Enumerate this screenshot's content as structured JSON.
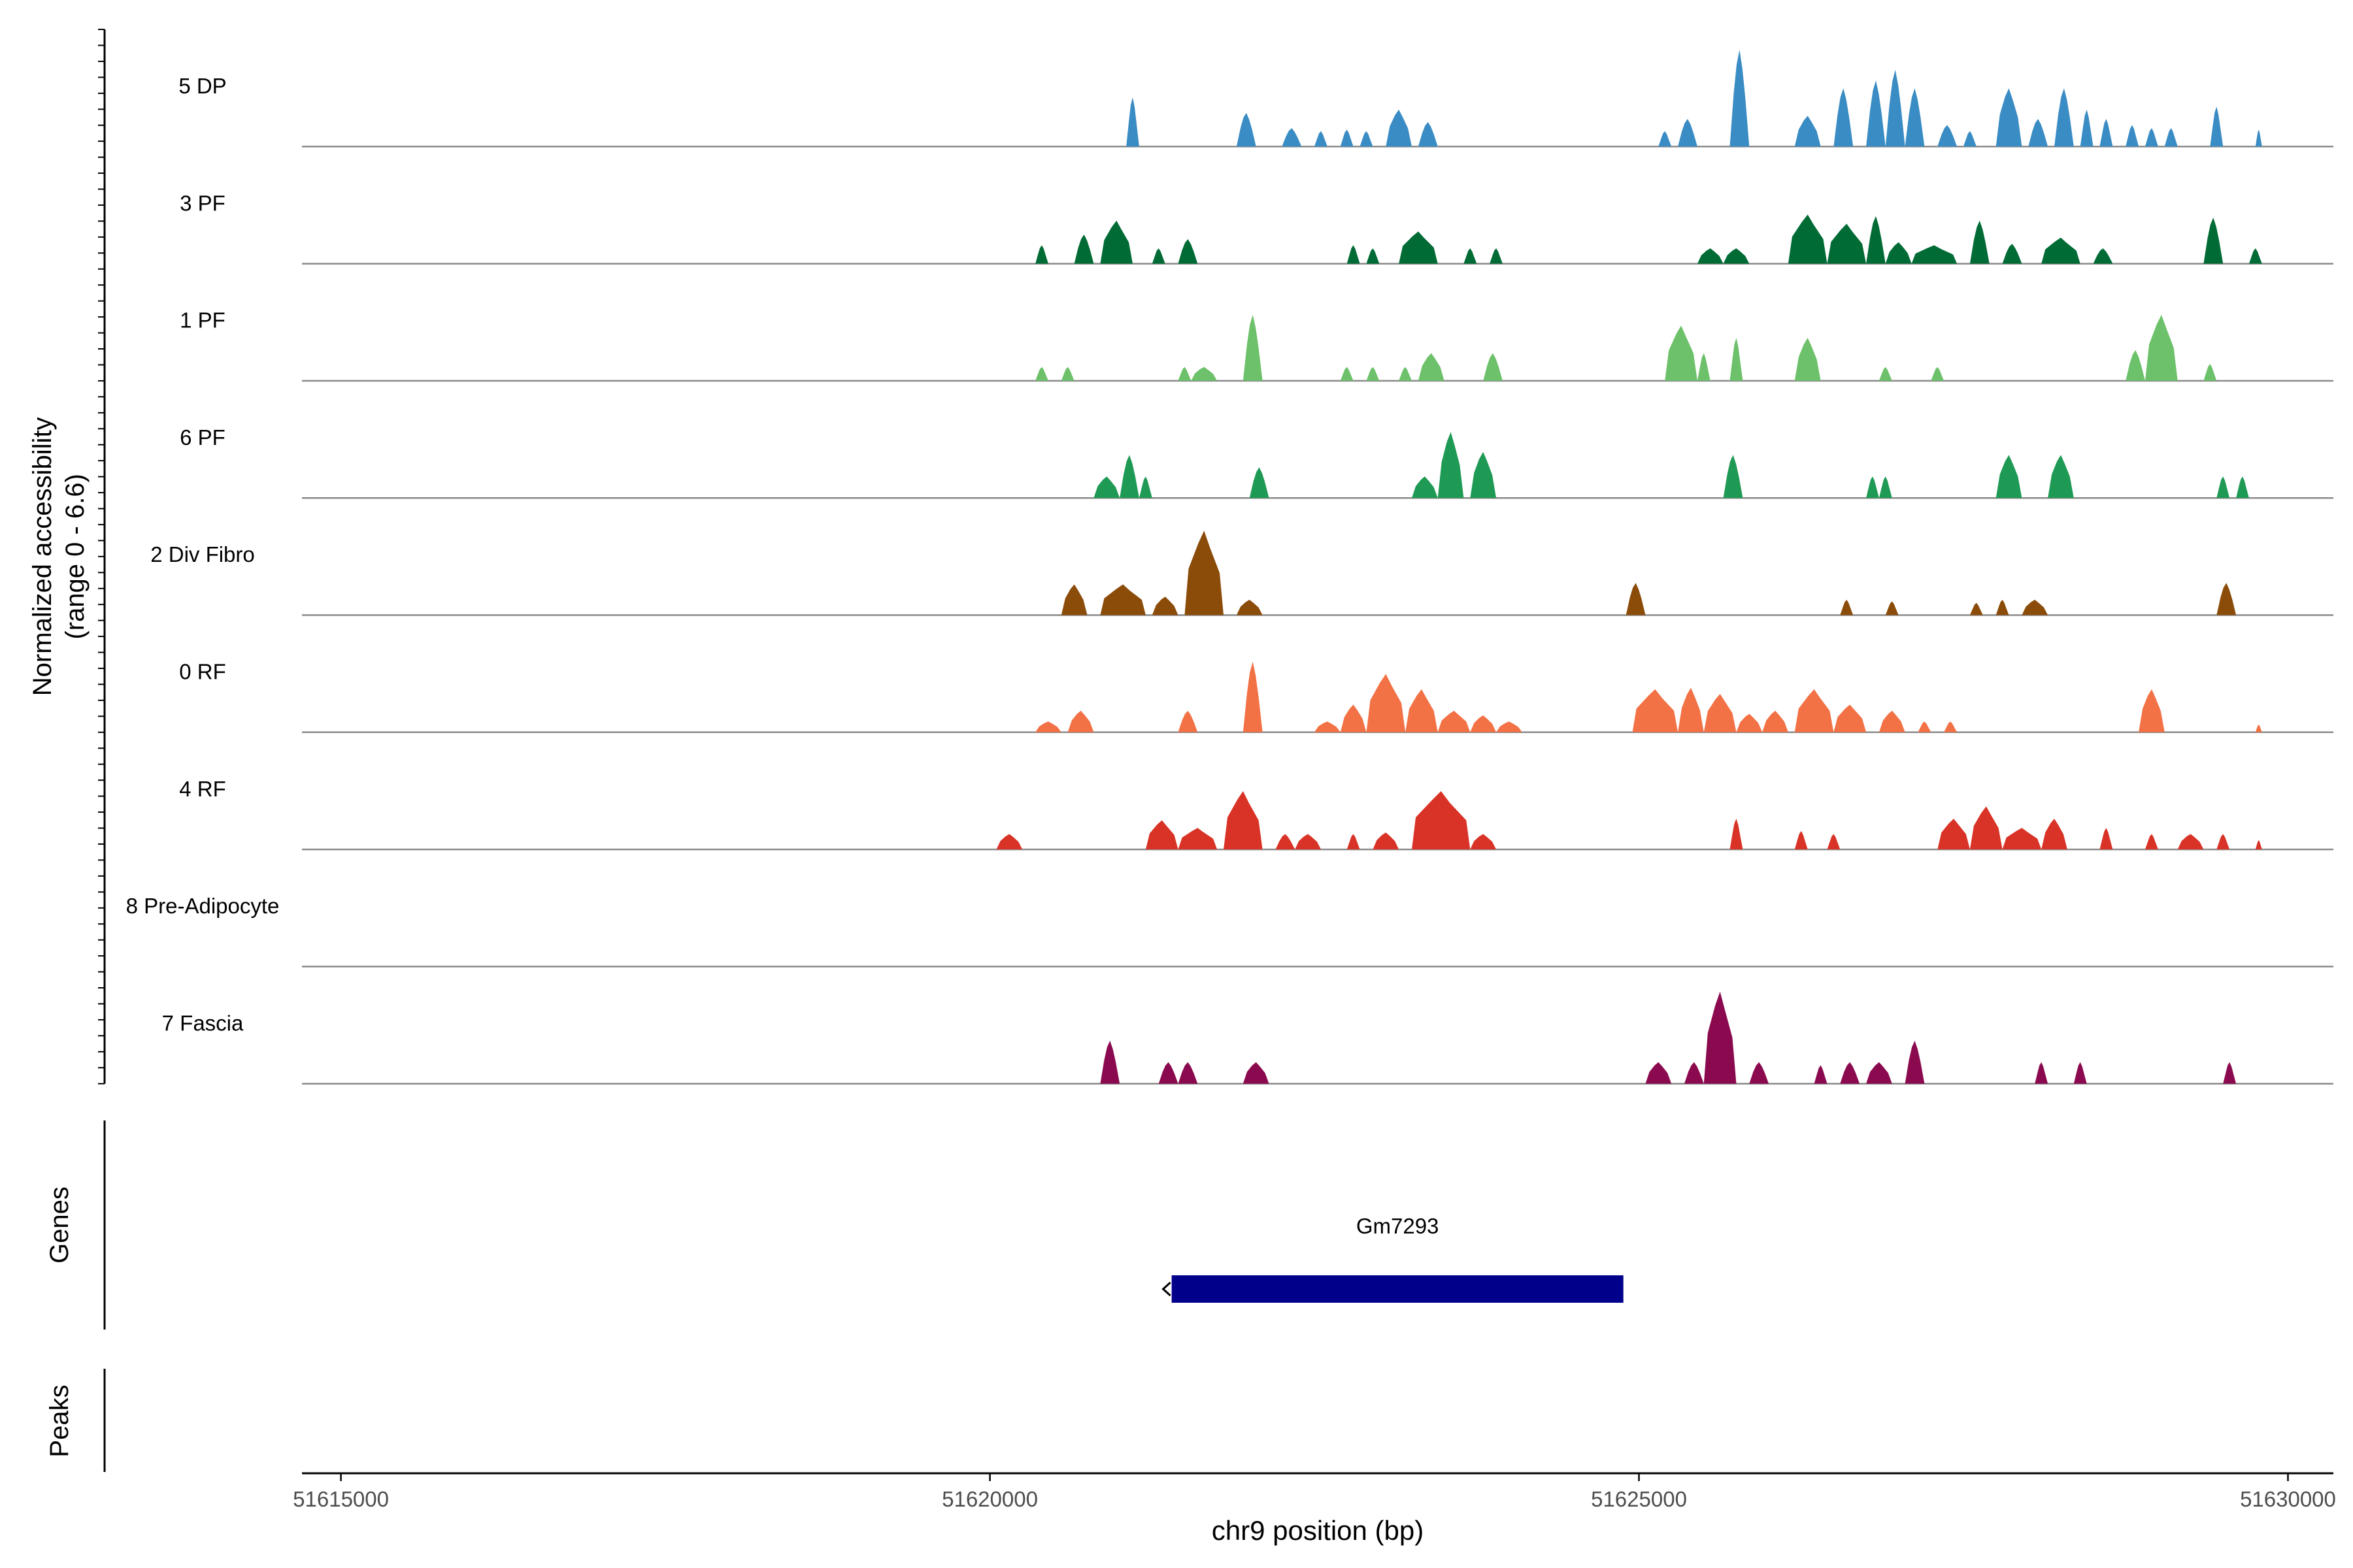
{
  "chart_data": {
    "type": "area",
    "title": "",
    "xlabel": "chr9 position (bp)",
    "x_range": [
      51614700,
      51630350
    ],
    "x_ticks": [
      51615000,
      51620000,
      51625000,
      51630000
    ],
    "x_tick_labels": [
      "51615000",
      "51620000",
      "51625000",
      "51630000"
    ],
    "y_axis_label_line1": "Normalized accessibility",
    "y_axis_label_line2": "(range 0 - 6.6)",
    "ylim": [
      0,
      6.6
    ],
    "tracks": [
      {
        "name": "5 DP",
        "color": "#3A8CC4",
        "peaks": [
          [
            51621050,
            51621150,
            3.2
          ],
          [
            51621900,
            51622050,
            2.2
          ],
          [
            51622250,
            51622400,
            1.2
          ],
          [
            51622500,
            51622600,
            1.0
          ],
          [
            51622700,
            51622800,
            1.1
          ],
          [
            51622850,
            51622950,
            1.0
          ],
          [
            51623050,
            51623250,
            2.4
          ],
          [
            51623300,
            51623450,
            1.6
          ],
          [
            51625150,
            51625250,
            1.0
          ],
          [
            51625300,
            51625450,
            1.8
          ],
          [
            51625700,
            51625850,
            6.3
          ],
          [
            51626200,
            51626400,
            2.0
          ],
          [
            51626500,
            51626650,
            3.8
          ],
          [
            51626750,
            51626900,
            4.3
          ],
          [
            51626900,
            51627050,
            5.0
          ],
          [
            51627050,
            51627200,
            3.8
          ],
          [
            51627300,
            51627450,
            1.4
          ],
          [
            51627500,
            51627600,
            1.0
          ],
          [
            51627750,
            51627950,
            3.8
          ],
          [
            51628000,
            51628150,
            1.8
          ],
          [
            51628200,
            51628350,
            3.8
          ],
          [
            51628400,
            51628500,
            2.4
          ],
          [
            51628550,
            51628650,
            1.8
          ],
          [
            51628750,
            51628850,
            1.4
          ],
          [
            51628900,
            51629000,
            1.2
          ],
          [
            51629050,
            51629150,
            1.2
          ],
          [
            51629400,
            51629500,
            2.6
          ],
          [
            51629750,
            51629800,
            1.1
          ]
        ]
      },
      {
        "name": "3 PF",
        "color": "#006B35",
        "peaks": [
          [
            51620350,
            51620450,
            1.2
          ],
          [
            51620650,
            51620800,
            1.9
          ],
          [
            51620850,
            51621100,
            2.8
          ],
          [
            51621250,
            51621350,
            1.0
          ],
          [
            51621450,
            51621600,
            1.6
          ],
          [
            51622750,
            51622850,
            1.2
          ],
          [
            51622900,
            51623000,
            1.0
          ],
          [
            51623150,
            51623450,
            2.1
          ],
          [
            51623650,
            51623750,
            1.0
          ],
          [
            51623850,
            51623950,
            1.0
          ],
          [
            51625450,
            51625650,
            1.0
          ],
          [
            51625650,
            51625850,
            1.0
          ],
          [
            51626150,
            51626450,
            3.2
          ],
          [
            51626450,
            51626750,
            2.6
          ],
          [
            51626750,
            51626900,
            3.1
          ],
          [
            51626900,
            51627100,
            1.4
          ],
          [
            51627100,
            51627450,
            1.2
          ],
          [
            51627550,
            51627700,
            2.8
          ],
          [
            51627800,
            51627950,
            1.3
          ],
          [
            51628100,
            51628400,
            1.7
          ],
          [
            51628500,
            51628650,
            1.0
          ],
          [
            51629350,
            51629500,
            3.0
          ],
          [
            51629700,
            51629800,
            1.0
          ]
        ]
      },
      {
        "name": "1 PF",
        "color": "#6CC16A",
        "peaks": [
          [
            51620350,
            51620450,
            0.9
          ],
          [
            51620550,
            51620650,
            0.9
          ],
          [
            51621450,
            51621550,
            0.9
          ],
          [
            51621550,
            51621750,
            0.9
          ],
          [
            51621950,
            51622100,
            4.3
          ],
          [
            51622700,
            51622800,
            0.9
          ],
          [
            51622900,
            51623000,
            0.9
          ],
          [
            51623150,
            51623250,
            0.9
          ],
          [
            51623300,
            51623500,
            1.8
          ],
          [
            51623800,
            51623950,
            1.8
          ],
          [
            51625200,
            51625450,
            3.6
          ],
          [
            51625450,
            51625550,
            1.8
          ],
          [
            51625700,
            51625800,
            2.8
          ],
          [
            51626200,
            51626400,
            2.8
          ],
          [
            51626850,
            51626950,
            0.9
          ],
          [
            51627250,
            51627350,
            0.9
          ],
          [
            51628750,
            51628900,
            2.0
          ],
          [
            51628900,
            51629150,
            4.3
          ],
          [
            51629350,
            51629450,
            1.1
          ]
        ]
      },
      {
        "name": "6 PF",
        "color": "#1F9A55",
        "peaks": [
          [
            51620800,
            51621000,
            1.4
          ],
          [
            51621000,
            51621150,
            2.8
          ],
          [
            51621150,
            51621250,
            1.4
          ],
          [
            51622000,
            51622150,
            2.0
          ],
          [
            51623250,
            51623450,
            1.4
          ],
          [
            51623450,
            51623650,
            4.3
          ],
          [
            51623700,
            51623900,
            3.0
          ],
          [
            51625650,
            51625800,
            2.8
          ],
          [
            51626750,
            51626850,
            1.4
          ],
          [
            51626850,
            51626950,
            1.4
          ],
          [
            51627750,
            51627950,
            2.8
          ],
          [
            51628150,
            51628350,
            2.8
          ],
          [
            51629450,
            51629550,
            1.4
          ],
          [
            51629600,
            51629700,
            1.4
          ]
        ]
      },
      {
        "name": "2 Div Fibro",
        "color": "#8B4C0A",
        "peaks": [
          [
            51620550,
            51620750,
            2.0
          ],
          [
            51620850,
            51621200,
            2.0
          ],
          [
            51621250,
            51621450,
            1.2
          ],
          [
            51621500,
            51621800,
            5.5
          ],
          [
            51621900,
            51622100,
            1.0
          ],
          [
            51624900,
            51625050,
            2.1
          ],
          [
            51626550,
            51626650,
            1.0
          ],
          [
            51626900,
            51627000,
            0.9
          ],
          [
            51627550,
            51627650,
            0.8
          ],
          [
            51627750,
            51627850,
            1.0
          ],
          [
            51627950,
            51628150,
            1.0
          ],
          [
            51629450,
            51629600,
            2.1
          ]
        ]
      },
      {
        "name": "0 RF",
        "color": "#F27145",
        "peaks": [
          [
            51620350,
            51620550,
            0.7
          ],
          [
            51620600,
            51620800,
            1.4
          ],
          [
            51621450,
            51621600,
            1.4
          ],
          [
            51621950,
            51622100,
            4.6
          ],
          [
            51622500,
            51622700,
            0.7
          ],
          [
            51622700,
            51622900,
            1.8
          ],
          [
            51622900,
            51623200,
            3.8
          ],
          [
            51623200,
            51623450,
            2.8
          ],
          [
            51623450,
            51623700,
            1.4
          ],
          [
            51623700,
            51623900,
            1.1
          ],
          [
            51623900,
            51624100,
            0.7
          ],
          [
            51624950,
            51625300,
            2.8
          ],
          [
            51625300,
            51625500,
            2.9
          ],
          [
            51625500,
            51625750,
            2.5
          ],
          [
            51625750,
            51625950,
            1.2
          ],
          [
            51625950,
            51626150,
            1.4
          ],
          [
            51626200,
            51626500,
            2.8
          ],
          [
            51626500,
            51626750,
            1.8
          ],
          [
            51626850,
            51627050,
            1.4
          ],
          [
            51627150,
            51627250,
            0.7
          ],
          [
            51627350,
            51627450,
            0.7
          ],
          [
            51628850,
            51629050,
            2.8
          ],
          [
            51629750,
            51629800,
            0.5
          ]
        ]
      },
      {
        "name": "4 RF",
        "color": "#D93327",
        "peaks": [
          [
            51620050,
            51620250,
            1.0
          ],
          [
            51621200,
            51621450,
            1.9
          ],
          [
            51621450,
            51621750,
            1.4
          ],
          [
            51621800,
            51622100,
            3.8
          ],
          [
            51622200,
            51622350,
            1.0
          ],
          [
            51622350,
            51622550,
            1.0
          ],
          [
            51622750,
            51622850,
            1.0
          ],
          [
            51622950,
            51623150,
            1.1
          ],
          [
            51623250,
            51623700,
            3.8
          ],
          [
            51623700,
            51623900,
            1.0
          ],
          [
            51625700,
            51625800,
            2.0
          ],
          [
            51626200,
            51626300,
            1.2
          ],
          [
            51626450,
            51626550,
            1.0
          ],
          [
            51627300,
            51627550,
            2.0
          ],
          [
            51627550,
            51627800,
            2.8
          ],
          [
            51627800,
            51628100,
            1.4
          ],
          [
            51628100,
            51628300,
            2.0
          ],
          [
            51628550,
            51628650,
            1.4
          ],
          [
            51628900,
            51629000,
            1.0
          ],
          [
            51629150,
            51629350,
            1.0
          ],
          [
            51629450,
            51629550,
            1.0
          ],
          [
            51629750,
            51629800,
            0.6
          ]
        ]
      },
      {
        "name": "8 Pre-Adipocyte",
        "color": "#5B2C8F",
        "peaks": []
      },
      {
        "name": "7 Fascia",
        "color": "#8B0A4F",
        "peaks": [
          [
            51620850,
            51621000,
            2.8
          ],
          [
            51621300,
            51621450,
            1.4
          ],
          [
            51621450,
            51621600,
            1.4
          ],
          [
            51621950,
            51622150,
            1.4
          ],
          [
            51625050,
            51625250,
            1.4
          ],
          [
            51625350,
            51625500,
            1.4
          ],
          [
            51625500,
            51625750,
            6.0
          ],
          [
            51625850,
            51626000,
            1.4
          ],
          [
            51626350,
            51626450,
            1.2
          ],
          [
            51626550,
            51626700,
            1.4
          ],
          [
            51626750,
            51626950,
            1.4
          ],
          [
            51627050,
            51627200,
            2.8
          ],
          [
            51628050,
            51628150,
            1.4
          ],
          [
            51628350,
            51628450,
            1.4
          ],
          [
            51629500,
            51629600,
            1.4
          ]
        ]
      }
    ],
    "genes_label": "Genes",
    "peaks_label": "Peaks",
    "genes": [
      {
        "name": "Gm7293",
        "start": 51621400,
        "end": 51624880,
        "strand": "-",
        "color": "#00008B"
      }
    ]
  }
}
